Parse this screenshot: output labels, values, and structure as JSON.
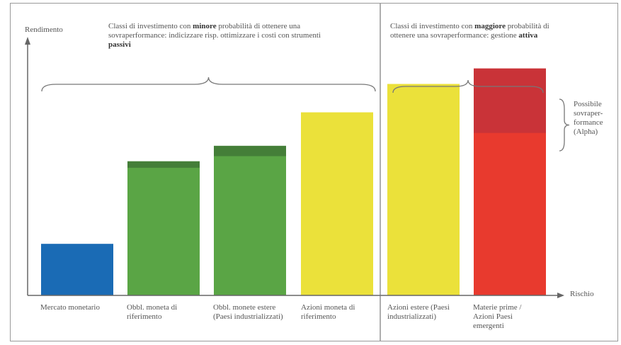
{
  "chart_data": {
    "type": "bar",
    "ylabel": "Rendimento",
    "xlabel": "Rischio",
    "categories": [
      "Mercato monetario",
      "Obbl. moneta di riferimento",
      "Obbl. monete estere (Paesi industrializzati)",
      "Azioni moneta di riferimento",
      "Azioni estere (Paesi industrializzati)",
      "Materie prime / Azioni Paesi emergenti"
    ],
    "series": [
      {
        "values": [
          0.2,
          0.52,
          0.58,
          0.71,
          0.82,
          0.88
        ]
      }
    ],
    "ylim": [
      0,
      1
    ],
    "colors": [
      "#1a6bb5",
      "#5aa545",
      "#5aa545",
      "#ebe13a",
      "#ebe13a",
      "#e83a2e"
    ],
    "top_colors": [
      "#1a6bb5",
      "#447e38",
      "#447e38",
      "#ebe13a",
      "#e0cc2a",
      "#c93338"
    ],
    "top_band": [
      0,
      0.025,
      0.04,
      0,
      0,
      0.25
    ],
    "group_left": {
      "text_normal_1": "Classi di investimento con ",
      "text_bold_1": "minore",
      "text_normal_2": " probabilità di ottenere una sovraperformance: indicizzare risp. ottimizzare i costi con strumenti ",
      "text_bold_2": "passivi"
    },
    "group_right": {
      "text_normal_1": "Classi di investimento con ",
      "text_bold_1": "maggiore",
      "text_normal_2": " probabilità di ottenere una sovraperformance: gestione ",
      "text_bold_2": "attiva"
    },
    "alpha_label": "Possibile sovraper-formance (Alpha)"
  }
}
